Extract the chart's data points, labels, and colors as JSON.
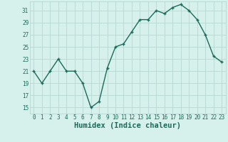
{
  "x": [
    0,
    1,
    2,
    3,
    4,
    5,
    6,
    7,
    8,
    9,
    10,
    11,
    12,
    13,
    14,
    15,
    16,
    17,
    18,
    19,
    20,
    21,
    22,
    23
  ],
  "y": [
    21,
    19,
    21,
    23,
    21,
    21,
    19,
    15,
    16,
    21.5,
    25,
    25.5,
    27.5,
    29.5,
    29.5,
    31,
    30.5,
    31.5,
    32,
    31,
    29.5,
    27,
    23.5,
    22.5
  ],
  "line_color": "#1a6b5a",
  "marker": "+",
  "bg_color": "#d6f0ec",
  "grid_color": "#b8d8d4",
  "xlabel": "Humidex (Indice chaleur)",
  "xlabel_color": "#1a6b5a",
  "ylabel_ticks": [
    15,
    17,
    19,
    21,
    23,
    25,
    27,
    29,
    31
  ],
  "xlim": [
    -0.5,
    23.5
  ],
  "ylim": [
    14.0,
    32.5
  ],
  "xticks": [
    0,
    1,
    2,
    3,
    4,
    5,
    6,
    7,
    8,
    9,
    10,
    11,
    12,
    13,
    14,
    15,
    16,
    17,
    18,
    19,
    20,
    21,
    22,
    23
  ],
  "tick_color": "#1a6b5a",
  "tick_fontsize": 5.5,
  "xlabel_fontsize": 7.5,
  "linewidth": 1.0,
  "markersize": 3.5,
  "markeredgewidth": 1.0
}
